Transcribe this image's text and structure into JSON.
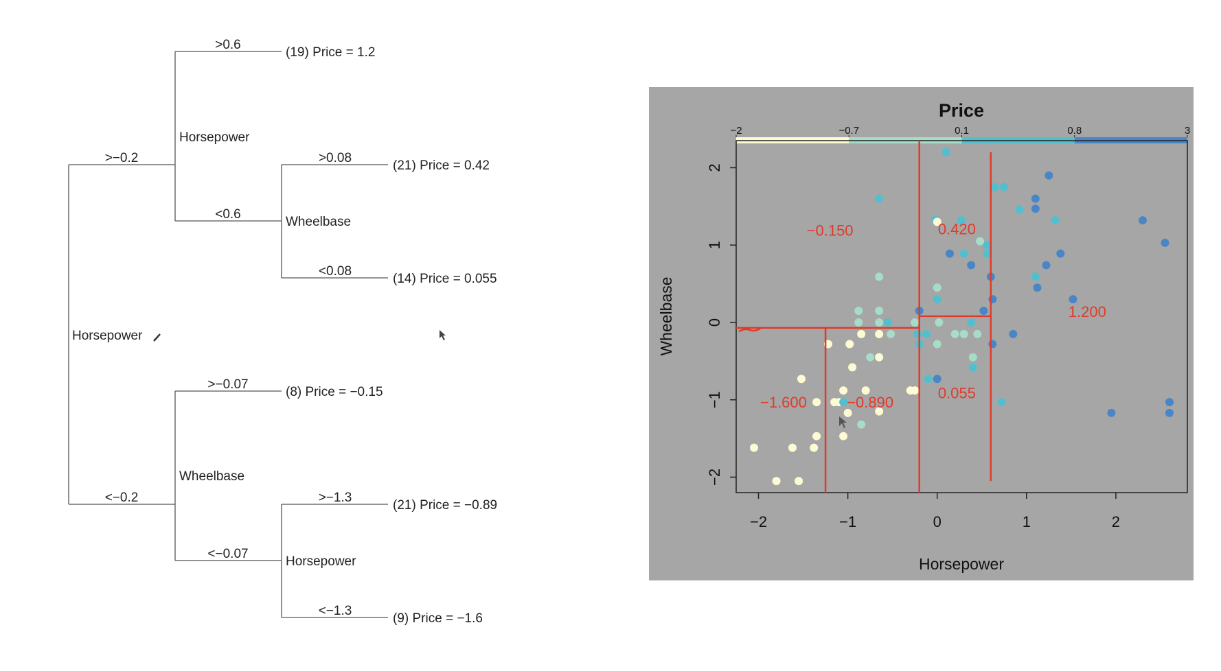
{
  "tree": {
    "root_label": "Horsepower",
    "upper": {
      "edge_label": ">−0.2",
      "split_label": "Horsepower",
      "top": {
        "edge_label": ">0.6",
        "leaf": "(19) Price = 1.2"
      },
      "bottom": {
        "edge_label": "<0.6",
        "split_label": "Wheelbase",
        "top": {
          "edge_label": ">0.08",
          "leaf": "(21) Price = 0.42"
        },
        "bottom": {
          "edge_label": "<0.08",
          "leaf": "(14) Price = 0.055"
        }
      }
    },
    "lower": {
      "edge_label": "<−0.2",
      "split_label": "Wheelbase",
      "top": {
        "edge_label": ">−0.07",
        "leaf": "(8) Price = −0.15"
      },
      "bottom": {
        "edge_label": "<−0.07",
        "split_label": "Horsepower",
        "top": {
          "edge_label": ">−1.3",
          "leaf": "(21) Price = −0.89"
        },
        "bottom": {
          "edge_label": "<−1.3",
          "leaf": "(9) Price = −1.6"
        }
      }
    }
  },
  "chart_data": {
    "type": "scatter",
    "title": "Price",
    "xlabel": "Horsepower",
    "ylabel": "Wheelbase",
    "xlim": [
      -2.25,
      2.8
    ],
    "ylim": [
      -2.2,
      2.35
    ],
    "xticks": [
      -2,
      -1,
      0,
      1,
      2
    ],
    "xtick_labels": [
      "−2",
      "−1",
      "0",
      "1",
      "2"
    ],
    "yticks": [
      -2,
      -1,
      0,
      1,
      2
    ],
    "ytick_labels": [
      "−2",
      "−1",
      "0",
      "1",
      "2"
    ],
    "legend": {
      "position": "top",
      "labels": [
        "−2",
        "−0.7",
        "0.1",
        "0.8",
        "3"
      ],
      "colors": [
        "#fdfbd3",
        "#a6dcc8",
        "#52bfcf",
        "#4a86c6"
      ]
    },
    "colors": {
      "background": "#a6a6a6",
      "partition": "#e03a2a",
      "c1": "#fdfbd3",
      "c2": "#a6dcc8",
      "c3": "#52bfcf",
      "c4": "#4a86c6"
    },
    "partition_lines": [
      {
        "x1": -2.25,
        "y1": -0.07,
        "x2": -0.2,
        "y2": -0.07
      },
      {
        "x1": -1.25,
        "y1": -2.2,
        "x2": -1.25,
        "y2": -0.07
      },
      {
        "x1": -0.2,
        "y1": -2.2,
        "x2": -0.2,
        "y2": 2.35
      },
      {
        "x1": -0.2,
        "y1": 0.08,
        "x2": 0.6,
        "y2": 0.08
      },
      {
        "x1": 0.6,
        "y1": -2.05,
        "x2": 0.6,
        "y2": 2.2
      }
    ],
    "region_labels": [
      {
        "text": "−0.150",
        "x": -1.2,
        "y": 1.12
      },
      {
        "text": "0.420",
        "x": 0.22,
        "y": 1.14
      },
      {
        "text": "1.200",
        "x": 1.68,
        "y": 0.07
      },
      {
        "text": "0.055",
        "x": 0.22,
        "y": -0.98
      },
      {
        "text": "−1.600",
        "x": -1.72,
        "y": -1.1
      },
      {
        "text": "−0.890",
        "x": -0.75,
        "y": -1.1
      }
    ],
    "points": [
      {
        "x": 0.1,
        "y": 2.2,
        "c": 3
      },
      {
        "x": 1.25,
        "y": 1.9,
        "c": 4
      },
      {
        "x": 0.75,
        "y": 1.75,
        "c": 3
      },
      {
        "x": 0.65,
        "y": 1.75,
        "c": 3
      },
      {
        "x": -0.65,
        "y": 1.6,
        "c": 3
      },
      {
        "x": 1.1,
        "y": 1.6,
        "c": 4
      },
      {
        "x": 1.1,
        "y": 1.47,
        "c": 4
      },
      {
        "x": 0.92,
        "y": 1.46,
        "c": 3
      },
      {
        "x": 2.3,
        "y": 1.32,
        "c": 4
      },
      {
        "x": 1.32,
        "y": 1.32,
        "c": 3
      },
      {
        "x": -0.02,
        "y": 1.33,
        "c": 3
      },
      {
        "x": 0.0,
        "y": 1.3,
        "c": 1
      },
      {
        "x": 0.27,
        "y": 1.32,
        "c": 3
      },
      {
        "x": 0.48,
        "y": 1.05,
        "c": 2
      },
      {
        "x": 2.55,
        "y": 1.03,
        "c": 4
      },
      {
        "x": 0.56,
        "y": 1.0,
        "c": 3
      },
      {
        "x": 0.14,
        "y": 0.89,
        "c": 4
      },
      {
        "x": 0.3,
        "y": 0.89,
        "c": 3
      },
      {
        "x": 0.56,
        "y": 0.89,
        "c": 3
      },
      {
        "x": 1.38,
        "y": 0.89,
        "c": 4
      },
      {
        "x": 0.38,
        "y": 0.74,
        "c": 4
      },
      {
        "x": 1.22,
        "y": 0.74,
        "c": 4
      },
      {
        "x": -0.65,
        "y": 0.59,
        "c": 2
      },
      {
        "x": 0.0,
        "y": 0.45,
        "c": 2
      },
      {
        "x": 0.6,
        "y": 0.59,
        "c": 4
      },
      {
        "x": 1.1,
        "y": 0.59,
        "c": 3
      },
      {
        "x": 1.12,
        "y": 0.45,
        "c": 4
      },
      {
        "x": 0.0,
        "y": 0.3,
        "c": 3
      },
      {
        "x": 0.62,
        "y": 0.3,
        "c": 4
      },
      {
        "x": 1.52,
        "y": 0.3,
        "c": 4
      },
      {
        "x": -0.88,
        "y": 0.15,
        "c": 2
      },
      {
        "x": -0.65,
        "y": 0.15,
        "c": 2
      },
      {
        "x": -0.2,
        "y": 0.15,
        "c": 4
      },
      {
        "x": 0.52,
        "y": 0.15,
        "c": 4
      },
      {
        "x": -0.88,
        "y": 0.0,
        "c": 2
      },
      {
        "x": -0.65,
        "y": 0.0,
        "c": 2
      },
      {
        "x": -0.55,
        "y": 0.0,
        "c": 3
      },
      {
        "x": -0.25,
        "y": 0.0,
        "c": 2
      },
      {
        "x": 0.02,
        "y": 0.0,
        "c": 2
      },
      {
        "x": 0.38,
        "y": 0.0,
        "c": 3
      },
      {
        "x": -0.85,
        "y": -0.15,
        "c": 1
      },
      {
        "x": -0.65,
        "y": -0.15,
        "c": 1
      },
      {
        "x": -0.52,
        "y": -0.15,
        "c": 2
      },
      {
        "x": -0.22,
        "y": -0.15,
        "c": 3
      },
      {
        "x": -0.12,
        "y": -0.15,
        "c": 3
      },
      {
        "x": 0.2,
        "y": -0.15,
        "c": 2
      },
      {
        "x": 0.3,
        "y": -0.15,
        "c": 2
      },
      {
        "x": 0.45,
        "y": -0.15,
        "c": 2
      },
      {
        "x": 0.62,
        "y": -0.28,
        "c": 4
      },
      {
        "x": 0.85,
        "y": -0.15,
        "c": 4
      },
      {
        "x": -1.22,
        "y": -0.28,
        "c": 1
      },
      {
        "x": -0.98,
        "y": -0.28,
        "c": 1
      },
      {
        "x": -0.2,
        "y": -0.28,
        "c": 3
      },
      {
        "x": 0.0,
        "y": -0.28,
        "c": 2
      },
      {
        "x": -0.75,
        "y": -0.45,
        "c": 2
      },
      {
        "x": -0.65,
        "y": -0.45,
        "c": 1
      },
      {
        "x": 0.4,
        "y": -0.45,
        "c": 2
      },
      {
        "x": -0.95,
        "y": -0.58,
        "c": 1
      },
      {
        "x": 0.4,
        "y": -0.58,
        "c": 3
      },
      {
        "x": -1.52,
        "y": -0.73,
        "c": 1
      },
      {
        "x": -0.1,
        "y": -0.73,
        "c": 3
      },
      {
        "x": 0.0,
        "y": -0.73,
        "c": 4
      },
      {
        "x": -1.05,
        "y": -0.88,
        "c": 1
      },
      {
        "x": -0.8,
        "y": -0.88,
        "c": 1
      },
      {
        "x": -0.3,
        "y": -0.88,
        "c": 1
      },
      {
        "x": -0.25,
        "y": -0.88,
        "c": 1
      },
      {
        "x": -1.35,
        "y": -1.03,
        "c": 1
      },
      {
        "x": -1.1,
        "y": -1.03,
        "c": 1
      },
      {
        "x": -1.05,
        "y": -1.03,
        "c": 3
      },
      {
        "x": 0.72,
        "y": -1.03,
        "c": 3
      },
      {
        "x": 2.6,
        "y": -1.03,
        "c": 4
      },
      {
        "x": -1.15,
        "y": -1.03,
        "c": 1
      },
      {
        "x": -0.65,
        "y": -1.15,
        "c": 1
      },
      {
        "x": 1.95,
        "y": -1.17,
        "c": 4
      },
      {
        "x": 2.6,
        "y": -1.17,
        "c": 4
      },
      {
        "x": -1.0,
        "y": -1.17,
        "c": 1
      },
      {
        "x": -0.85,
        "y": -1.32,
        "c": 2
      },
      {
        "x": -1.05,
        "y": -1.47,
        "c": 1
      },
      {
        "x": -1.35,
        "y": -1.47,
        "c": 1
      },
      {
        "x": -2.05,
        "y": -1.62,
        "c": 1
      },
      {
        "x": -1.62,
        "y": -1.62,
        "c": 1
      },
      {
        "x": -1.38,
        "y": -1.62,
        "c": 1
      },
      {
        "x": -1.8,
        "y": -2.05,
        "c": 1
      },
      {
        "x": -1.55,
        "y": -2.05,
        "c": 1
      }
    ]
  }
}
